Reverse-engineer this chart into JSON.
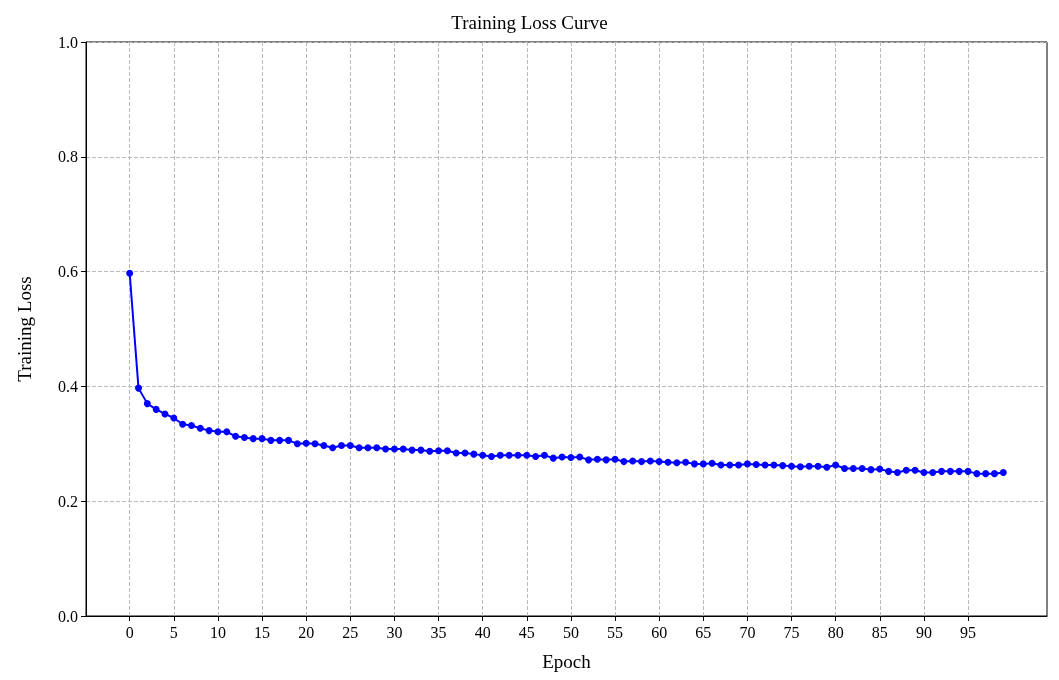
{
  "chart_data": {
    "type": "line",
    "title": "Training Loss Curve",
    "xlabel": "Epoch",
    "ylabel": "Training Loss",
    "x": [
      0,
      1,
      2,
      3,
      4,
      5,
      6,
      7,
      8,
      9,
      10,
      11,
      12,
      13,
      14,
      15,
      16,
      17,
      18,
      19,
      20,
      21,
      22,
      23,
      24,
      25,
      26,
      27,
      28,
      29,
      30,
      31,
      32,
      33,
      34,
      35,
      36,
      37,
      38,
      39,
      40,
      41,
      42,
      43,
      44,
      45,
      46,
      47,
      48,
      49,
      50,
      51,
      52,
      53,
      54,
      55,
      56,
      57,
      58,
      59,
      60,
      61,
      62,
      63,
      64,
      65,
      66,
      67,
      68,
      69,
      70,
      71,
      72,
      73,
      74,
      75,
      76,
      77,
      78,
      79,
      80,
      81,
      82,
      83,
      84,
      85,
      86,
      87,
      88,
      89,
      90,
      91,
      92,
      93,
      94,
      95,
      96,
      97,
      98,
      99
    ],
    "series": [
      {
        "color": "#0000ff",
        "values": [
          0.597,
          0.397,
          0.37,
          0.36,
          0.352,
          0.345,
          0.334,
          0.332,
          0.327,
          0.323,
          0.321,
          0.321,
          0.313,
          0.311,
          0.309,
          0.309,
          0.306,
          0.306,
          0.306,
          0.3,
          0.301,
          0.3,
          0.297,
          0.293,
          0.297,
          0.297,
          0.293,
          0.293,
          0.293,
          0.291,
          0.291,
          0.291,
          0.289,
          0.289,
          0.287,
          0.288,
          0.288,
          0.284,
          0.284,
          0.282,
          0.28,
          0.278,
          0.28,
          0.28,
          0.28,
          0.28,
          0.278,
          0.28,
          0.275,
          0.277,
          0.276,
          0.277,
          0.272,
          0.273,
          0.272,
          0.273,
          0.269,
          0.27,
          0.269,
          0.27,
          0.269,
          0.268,
          0.267,
          0.268,
          0.265,
          0.265,
          0.266,
          0.263,
          0.263,
          0.263,
          0.265,
          0.264,
          0.263,
          0.263,
          0.262,
          0.261,
          0.26,
          0.261,
          0.261,
          0.259,
          0.263,
          0.257,
          0.257,
          0.257,
          0.255,
          0.256,
          0.252,
          0.25,
          0.254,
          0.254,
          0.25,
          0.25,
          0.252,
          0.252,
          0.252,
          0.252,
          0.248,
          0.248,
          0.248,
          0.25
        ]
      }
    ],
    "xlim": [
      -4.95,
      103.95
    ],
    "xticks": [
      0,
      5,
      10,
      15,
      20,
      25,
      30,
      35,
      40,
      45,
      50,
      55,
      60,
      65,
      70,
      75,
      80,
      85,
      90,
      95
    ],
    "ylim": [
      0,
      1.0
    ],
    "yticks": [
      {
        "value": 0,
        "label": "0.0"
      },
      {
        "value": 0.2,
        "label": "0.2"
      },
      {
        "value": 0.4,
        "label": "0.4"
      },
      {
        "value": 0.6,
        "label": "0.6"
      },
      {
        "value": 0.8,
        "label": "0.8"
      },
      {
        "value": 1.0,
        "label": "1.0"
      }
    ],
    "grid": true,
    "marker": "circle",
    "line_style": "solid"
  }
}
